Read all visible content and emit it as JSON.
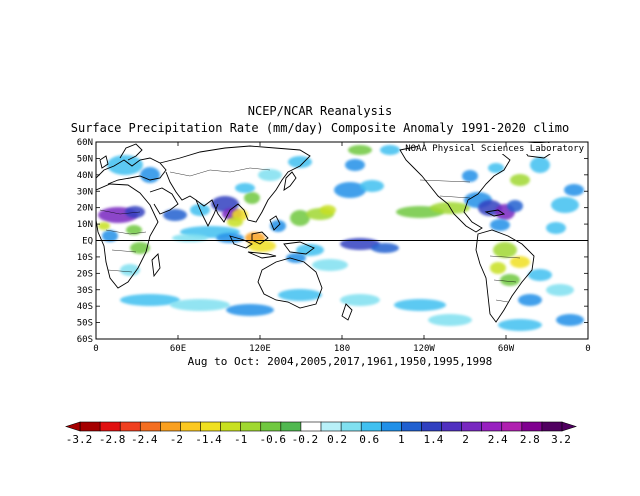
{
  "header": {
    "title": "NCEP/NCAR Reanalysis",
    "subtitle": "Surface Precipitation Rate (mm/day) Composite Anomaly 1991-2020 climo"
  },
  "map": {
    "credit": "NOAA Physical Sciences Laboratory",
    "lat_labels": [
      "60N",
      "50N",
      "40N",
      "30N",
      "20N",
      "10N",
      "EQ",
      "10S",
      "20S",
      "30S",
      "40S",
      "50S",
      "60S"
    ],
    "lon_labels": [
      "0",
      "60E",
      "120E",
      "180",
      "120W",
      "60W",
      "0"
    ],
    "caption": "Aug to Oct: 2004,2005,2017,1961,1950,1995,1998",
    "extent": {
      "lon": [
        0,
        360
      ],
      "lat": [
        -60,
        60
      ]
    }
  },
  "colorbar": {
    "ticks": [
      "-3.2",
      "-2.8",
      "-2.4",
      "-2",
      "-1.4",
      "-1",
      "-0.6",
      "-0.2",
      "0.2",
      "0.6",
      "1",
      "1.4",
      "2",
      "2.4",
      "2.8",
      "3.2"
    ],
    "colors": [
      "#a50000",
      "#e01010",
      "#f04020",
      "#f46e20",
      "#f9a020",
      "#fcc820",
      "#f0e020",
      "#c8e020",
      "#a0d830",
      "#70c840",
      "#50b850",
      "#ffffff",
      "#b8f0f8",
      "#80e0f0",
      "#40c0f0",
      "#2090e8",
      "#2060d0",
      "#3040c0",
      "#5030c0",
      "#7828c0",
      "#9820c0",
      "#b020b0",
      "#800090",
      "#500060"
    ]
  }
}
